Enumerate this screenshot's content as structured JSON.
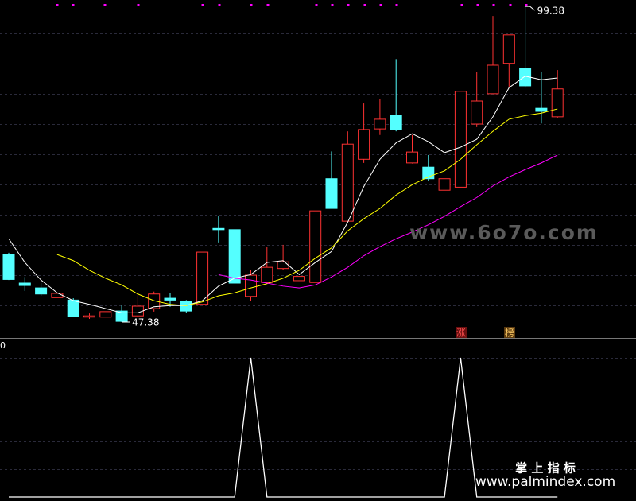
{
  "chart_data": [
    {
      "type": "candlestick",
      "ylim": [
        44.76,
        100.44
      ],
      "up_color": "#ff3232",
      "down_color": "#54ffff",
      "open": [
        58.5,
        53.8,
        53.0,
        51.4,
        51.0,
        48.2,
        48.2,
        49.2,
        48.4,
        49.6,
        51.3,
        50.8,
        50.3,
        62.8,
        62.6,
        51.6,
        53.9,
        56.2,
        54.2,
        53.9,
        71.0,
        64.0,
        74.2,
        79.2,
        81.4,
        73.6,
        72.9,
        69.1,
        69.6,
        80.0,
        85.0,
        90.0,
        89.2,
        82.6,
        81.2
      ],
      "high": [
        58.8,
        54.8,
        53.8,
        52.1,
        51.3,
        48.8,
        49.1,
        50.1,
        52.0,
        52.4,
        52.1,
        51.0,
        58.9,
        64.8,
        62.6,
        55.9,
        59.8,
        60.1,
        54.9,
        65.7,
        75.5,
        78.8,
        83.4,
        84.1,
        90.7,
        78.2,
        74.9,
        71.0,
        85.4,
        88.6,
        97.8,
        94.7,
        99.38,
        88.6,
        88.9
      ],
      "low": [
        54.3,
        52.5,
        51.7,
        51.4,
        48.3,
        47.9,
        48.2,
        47.38,
        48.3,
        49.1,
        49.9,
        48.9,
        50.3,
        60.5,
        53.8,
        50.9,
        53.7,
        55.9,
        54.2,
        53.9,
        66.1,
        63.9,
        73.6,
        78.2,
        78.8,
        73.5,
        70.6,
        69.1,
        69.6,
        79.5,
        85.0,
        86.0,
        86.0,
        80.1,
        81.0
      ],
      "close": [
        54.4,
        53.4,
        52.0,
        52.1,
        48.3,
        48.4,
        49.1,
        47.5,
        50.0,
        52.0,
        51.0,
        49.2,
        58.9,
        62.6,
        53.8,
        55.1,
        56.4,
        57.3,
        54.9,
        65.7,
        66.1,
        76.7,
        79.1,
        80.8,
        79.1,
        75.4,
        71.0,
        71.0,
        85.4,
        83.8,
        89.7,
        94.7,
        86.3,
        82.1,
        85.8
      ],
      "lines": [
        {
          "color": "#ffffff",
          "values": [
            61.1,
            57.2,
            54.3,
            52.2,
            50.9,
            50.3,
            49.6,
            48.9,
            48.9,
            49.9,
            50.1,
            50.1,
            50.9,
            53.3,
            54.6,
            55.2,
            57.2,
            57.5,
            55.2,
            57.2,
            59.0,
            63.8,
            69.7,
            74.2,
            76.9,
            78.4,
            77.1,
            75.3,
            76.2,
            77.5,
            81.2,
            86.0,
            87.9,
            87.3,
            87.6
          ]
        },
        {
          "color": "#ffff00",
          "values": [
            null,
            null,
            null,
            58.5,
            57.5,
            55.9,
            54.6,
            53.5,
            52.0,
            50.9,
            50.3,
            50.1,
            50.7,
            51.7,
            52.2,
            53.0,
            53.7,
            54.6,
            55.9,
            57.9,
            59.6,
            62.4,
            64.4,
            66.1,
            68.3,
            70.0,
            71.3,
            72.3,
            74.2,
            76.6,
            78.8,
            80.8,
            81.4,
            81.8,
            82.5
          ]
        },
        {
          "color": "#ff00ff",
          "values": [
            null,
            null,
            null,
            null,
            null,
            null,
            null,
            null,
            null,
            null,
            null,
            null,
            null,
            55.2,
            54.6,
            54.3,
            53.8,
            53.3,
            53.0,
            53.5,
            54.8,
            56.4,
            58.3,
            59.8,
            61.1,
            62.2,
            63.4,
            64.8,
            66.4,
            67.9,
            69.8,
            71.3,
            72.5,
            73.6,
            74.9
          ]
        }
      ],
      "annotations": [
        {
          "text": "涨"
        },
        {
          "text": "榜"
        }
      ]
    },
    {
      "type": "line",
      "color": "#ffffff",
      "ylim": [
        0,
        1
      ],
      "values": [
        0,
        0,
        0,
        0,
        0,
        0,
        0,
        0,
        0,
        0,
        0,
        0,
        0,
        0,
        0,
        1,
        0,
        0,
        0,
        0,
        0,
        0,
        0,
        0,
        0,
        0,
        0,
        0,
        1,
        0,
        0,
        0,
        0,
        0,
        0
      ]
    }
  ],
  "watermarks": [
    "www.6o7o.com",
    "掌 上 指 标",
    "www.palmindex.com"
  ]
}
